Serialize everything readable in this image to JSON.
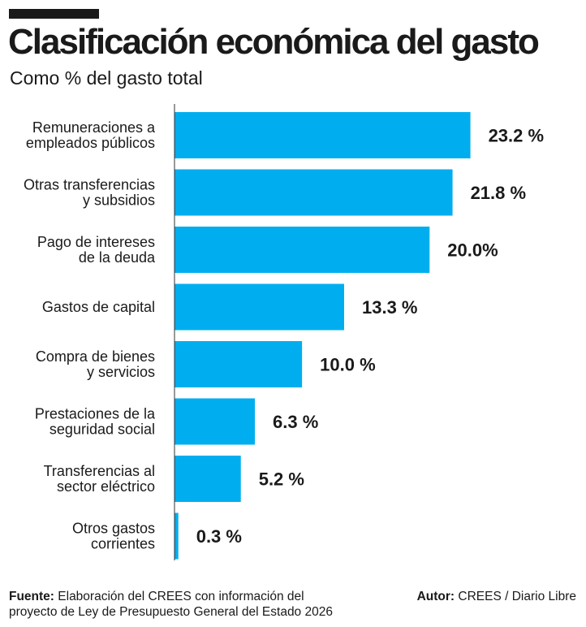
{
  "header": {
    "title": "Clasificación económica del gasto",
    "subtitle": "Como % del gasto total"
  },
  "chart_data": {
    "type": "bar",
    "orientation": "horizontal",
    "title": "Clasificación económica del gasto",
    "subtitle": "Como % del gasto total",
    "categories": [
      [
        "Remuneraciones a",
        "empleados públicos"
      ],
      [
        "Otras transferencias",
        "y subsidios"
      ],
      [
        "Pago de intereses",
        "de la deuda"
      ],
      [
        "Gastos de capital"
      ],
      [
        "Compra de bienes",
        "y servicios"
      ],
      [
        "Prestaciones de la",
        "seguridad social"
      ],
      [
        "Transferencias al",
        "sector eléctrico"
      ],
      [
        "Otros gastos",
        "corrientes"
      ]
    ],
    "values": [
      23.2,
      21.8,
      20.0,
      13.3,
      10.0,
      6.3,
      5.2,
      0.3
    ],
    "value_labels": [
      "23.2 %",
      "21.8 %",
      "20.0%",
      "13.3 %",
      "10.0 %",
      "6.3 %",
      "5.2 %",
      "0.3 %"
    ],
    "xlim": [
      0,
      28
    ],
    "unit": "%",
    "bar_color": "#00aeef"
  },
  "footer": {
    "source_label": "Fuente:",
    "source_line1": "Elaboración del CREES con información del",
    "source_line2": "proyecto de Ley de Presupuesto General del Estado 2026",
    "author_label": "Autor:",
    "author_text": "CREES / Diario Libre"
  }
}
